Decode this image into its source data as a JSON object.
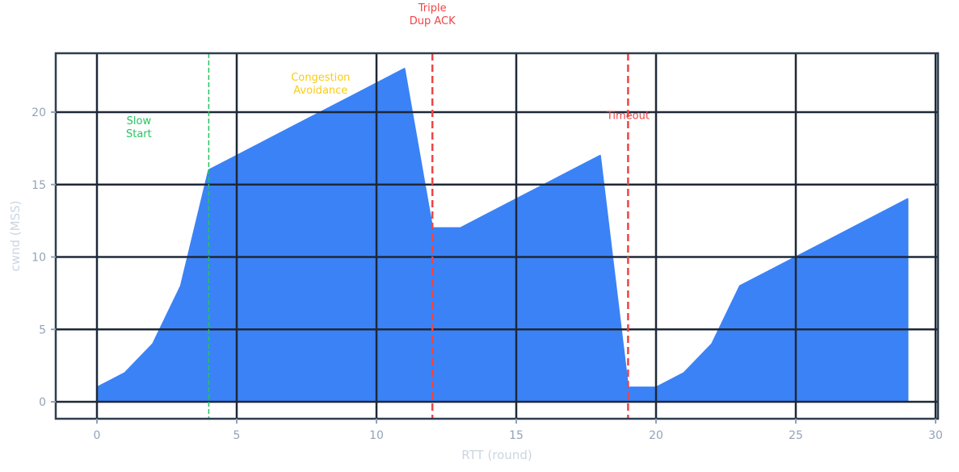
{
  "chart_data": {
    "type": "area",
    "title": "",
    "xlabel": "RTT (round)",
    "ylabel": "cwnd (MSS)",
    "xlim": [
      -1.5,
      30.5
    ],
    "ylim": [
      -1.2,
      24.2
    ],
    "xticks": [
      0,
      5,
      10,
      15,
      20,
      25,
      30
    ],
    "yticks": [
      0,
      5,
      10,
      15,
      20
    ],
    "grid": true,
    "legend": null,
    "series": [
      {
        "name": "cwnd",
        "color": "#3b82f6",
        "x": [
          0,
          1,
          2,
          3,
          4,
          5,
          6,
          7,
          8,
          9,
          10,
          11,
          12,
          13,
          14,
          15,
          16,
          17,
          18,
          19,
          20,
          21,
          22,
          23,
          24,
          25,
          26,
          27,
          28,
          29
        ],
        "values": [
          1,
          2,
          4,
          8,
          16,
          17,
          18,
          19,
          20,
          21,
          22,
          23,
          12,
          12,
          13,
          14,
          15,
          16,
          17,
          1,
          1,
          2,
          4,
          8,
          9,
          10,
          11,
          12,
          13,
          14
        ]
      }
    ],
    "vlines": [
      {
        "x": 4,
        "color": "#22c55e",
        "style": "dashed",
        "width": 1.5
      },
      {
        "x": 12,
        "color": "#ef4444",
        "style": "dashed",
        "width": 2.5
      },
      {
        "x": 19,
        "color": "#ef4444",
        "style": "dashed",
        "width": 2.5
      }
    ],
    "annotations": [
      {
        "lines": [
          "Slow",
          "Start"
        ],
        "x": 1.5,
        "y": 19.0,
        "color": "#22c55e"
      },
      {
        "lines": [
          "Congestion",
          "Avoidance"
        ],
        "x": 8.0,
        "y": 22.0,
        "color": "#facc15"
      },
      {
        "lines": [
          "Triple",
          "Dup ACK"
        ],
        "x": 12.0,
        "y": 26.8,
        "color": "#ef4444"
      },
      {
        "lines": [
          "Timeout"
        ],
        "x": 19.0,
        "y": 19.8,
        "color": "#ef4444"
      }
    ]
  },
  "colors": {
    "frame": "#2f3e50",
    "grid": "#1e2838",
    "tick_label": "#94a3b8",
    "axis_title": "#cbd5e1"
  }
}
